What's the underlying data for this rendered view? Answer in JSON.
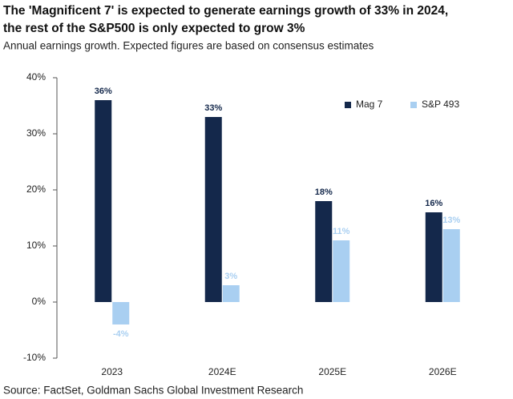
{
  "chart_data": {
    "type": "bar",
    "title": [
      "The 'Magnificent 7' is expected to generate earnings growth of 33% in 2024,",
      "the rest of the S&P500 is only expected to grow 3%"
    ],
    "subtitle": "Annual earnings growth. Expected figures are based on consensus estimates",
    "source": "Source: FactSet, Goldman Sachs Global Investment Research",
    "categories": [
      "2023",
      "2024E",
      "2025E",
      "2026E"
    ],
    "series": [
      {
        "name": "Mag 7",
        "color": "#14284b",
        "values": [
          36,
          33,
          18,
          16
        ],
        "value_labels": [
          "36%",
          "33%",
          "18%",
          "16%"
        ]
      },
      {
        "name": "S&P 493",
        "color": "#a9cff1",
        "values": [
          -4,
          3,
          11,
          13
        ],
        "value_labels": [
          "-4%",
          "3%",
          "11%",
          "13%"
        ]
      }
    ],
    "ylim": [
      -10,
      40
    ],
    "yticks": [
      {
        "value": -10,
        "label": "-10%"
      },
      {
        "value": 0,
        "label": "0%"
      },
      {
        "value": 10,
        "label": "10%"
      },
      {
        "value": 20,
        "label": "20%"
      },
      {
        "value": 30,
        "label": "30%"
      },
      {
        "value": 40,
        "label": "40%"
      }
    ],
    "grid": false,
    "legend": "top-right"
  }
}
